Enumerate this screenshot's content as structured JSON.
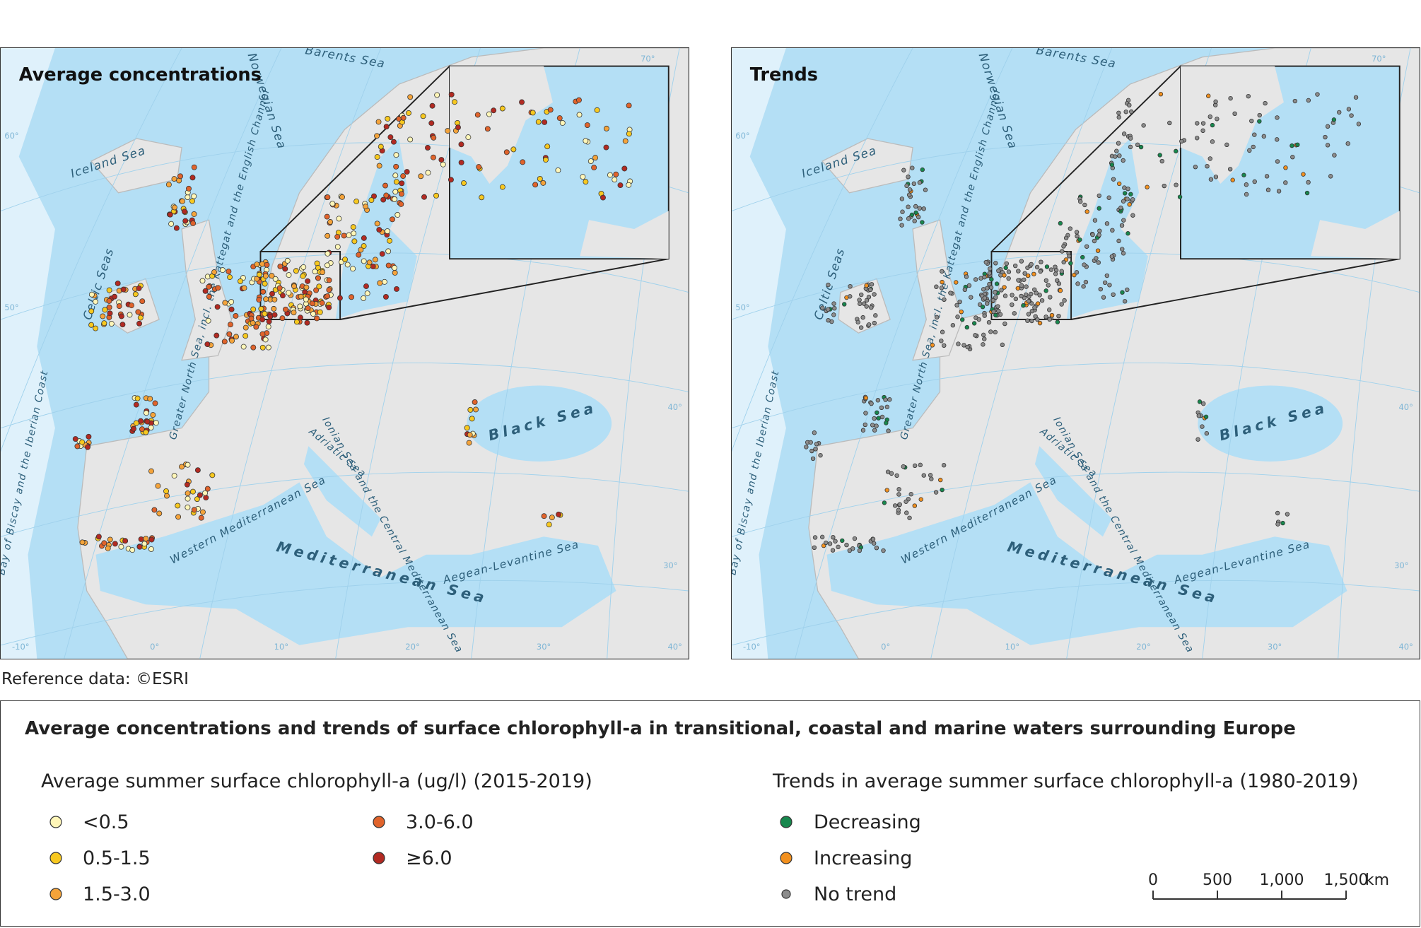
{
  "maps": [
    {
      "title": "Average concentrations",
      "dot_legend": "concentration"
    },
    {
      "title": "Trends",
      "dot_legend": "trends"
    }
  ],
  "sea_labels": [
    "Barents Sea",
    "Norwegian Sea",
    "Iceland Sea",
    "Celtic Seas",
    "Greater North Sea, incl. the Kattegat and the English Channel",
    "Bay of Biscay and the Iberian Coast",
    "Western Mediterranean Sea",
    "Mediterranean Sea",
    "Adriatic Sea",
    "Ionian Sea and the Central Mediterranean Sea",
    "Aegean-Levantine Sea",
    "Black Sea"
  ],
  "graticule_labels": [
    "-10°",
    "0°",
    "10°",
    "20°",
    "30°",
    "40°",
    "30°",
    "40°",
    "50°",
    "60°",
    "70°"
  ],
  "reference": "Reference data: ©ESRI",
  "legend": {
    "title": "Average concentrations and trends of surface chlorophyll-a in transitional, coastal and marine waters surrounding Europe",
    "concentration": {
      "title": "Average summer surface chlorophyll-a (ug/l) (2015-2019)",
      "classes": [
        {
          "label": "<0.5",
          "color": "#fff6b8"
        },
        {
          "label": "0.5-1.5",
          "color": "#f7c81f"
        },
        {
          "label": "1.5-3.0",
          "color": "#f4a33a"
        },
        {
          "label": "3.0-6.0",
          "color": "#e0632b"
        },
        {
          "label": "≥6.0",
          "color": "#b22a22"
        }
      ]
    },
    "trends": {
      "title": "Trends in average summer surface chlorophyll-a (1980-2019)",
      "classes": [
        {
          "label": "Decreasing",
          "color": "#17874d"
        },
        {
          "label": "Increasing",
          "color": "#f2901e"
        },
        {
          "label": "No trend",
          "color": "#8c8c8c"
        }
      ]
    }
  },
  "scale_bar": {
    "ticks": [
      "0",
      "500",
      "1,000",
      "1,500"
    ],
    "unit": "km"
  }
}
